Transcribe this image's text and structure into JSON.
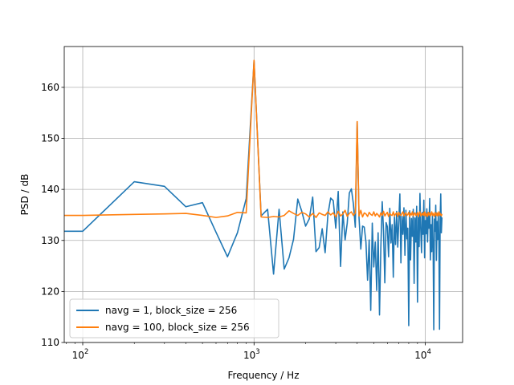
{
  "chart_data": {
    "type": "line",
    "title": "",
    "xlabel": "Frequency / Hz",
    "ylabel": "PSD / dB",
    "xscale": "log",
    "xlim": [
      78,
      16500
    ],
    "ylim": [
      110,
      168
    ],
    "grid": true,
    "legend_position": "lower-left",
    "x_ticks": [
      {
        "value": 100,
        "base": "10",
        "exp": "2"
      },
      {
        "value": 1000,
        "base": "10",
        "exp": "3"
      },
      {
        "value": 10000,
        "base": "10",
        "exp": "4"
      }
    ],
    "y_ticks": [
      110,
      120,
      130,
      140,
      150,
      160
    ],
    "series": [
      {
        "name": "navg = 1, block_size = 256",
        "color": "#1f77b4",
        "points": [
          [
            50,
            131.8
          ],
          [
            100,
            131.8
          ],
          [
            200,
            141.5
          ],
          [
            300,
            140.6
          ],
          [
            400,
            136.6
          ],
          [
            500,
            137.4
          ],
          [
            600,
            131.6
          ],
          [
            700,
            126.8
          ],
          [
            800,
            131.5
          ],
          [
            900,
            138.2
          ],
          [
            1000,
            165.2
          ],
          [
            1100,
            134.8
          ],
          [
            1200,
            136.1
          ],
          [
            1300,
            123.4
          ],
          [
            1400,
            136.1
          ],
          [
            1500,
            124.4
          ],
          [
            1600,
            126.6
          ],
          [
            1700,
            130.2
          ],
          [
            1800,
            138.1
          ],
          [
            1900,
            135.7
          ],
          [
            2000,
            132.8
          ],
          [
            2100,
            134.2
          ],
          [
            2200,
            138.5
          ],
          [
            2300,
            127.8
          ],
          [
            2400,
            128.6
          ],
          [
            2500,
            132.3
          ],
          [
            2600,
            127.6
          ],
          [
            2700,
            135.1
          ],
          [
            2800,
            138.3
          ],
          [
            2900,
            137.8
          ],
          [
            3000,
            132.4
          ],
          [
            3100,
            139.6
          ],
          [
            3200,
            124.9
          ],
          [
            3300,
            135.6
          ],
          [
            3400,
            130.1
          ],
          [
            3500,
            133.4
          ],
          [
            3600,
            139.3
          ],
          [
            3700,
            140.1
          ],
          [
            3800,
            137.2
          ],
          [
            3900,
            132.6
          ],
          [
            4000,
            153.2
          ],
          [
            4100,
            134.5
          ],
          [
            4200,
            128.3
          ],
          [
            4300,
            132.8
          ],
          [
            4400,
            132.6
          ],
          [
            4500,
            129.7
          ],
          [
            4600,
            122.2
          ],
          [
            4700,
            130.1
          ],
          [
            4800,
            116.3
          ],
          [
            4900,
            133.4
          ],
          [
            5000,
            124.8
          ],
          [
            5100,
            129.7
          ],
          [
            5200,
            120.2
          ],
          [
            5300,
            131.5
          ],
          [
            5400,
            115.4
          ],
          [
            5500,
            128.7
          ],
          [
            5600,
            137.6
          ],
          [
            5700,
            131.8
          ],
          [
            5800,
            121.7
          ],
          [
            5900,
            133.5
          ],
          [
            6000,
            132.7
          ],
          [
            6100,
            126.8
          ],
          [
            6200,
            136.3
          ],
          [
            6300,
            129.5
          ],
          [
            6400,
            133.1
          ],
          [
            6500,
            122.8
          ],
          [
            6600,
            134.6
          ],
          [
            6700,
            129.2
          ],
          [
            6800,
            135.7
          ],
          [
            6900,
            128.7
          ],
          [
            7000,
            133.9
          ],
          [
            7100,
            139.1
          ],
          [
            7200,
            125.6
          ],
          [
            7300,
            134.7
          ],
          [
            7400,
            131.2
          ],
          [
            7500,
            136.4
          ],
          [
            7600,
            127.1
          ],
          [
            7700,
            135.9
          ],
          [
            7800,
            130.3
          ],
          [
            7900,
            132.4
          ],
          [
            8000,
            113.3
          ],
          [
            8100,
            135.8
          ],
          [
            8200,
            126.2
          ],
          [
            8300,
            134.3
          ],
          [
            8400,
            130.8
          ],
          [
            8500,
            136.1
          ],
          [
            8600,
            121.6
          ],
          [
            8700,
            134.4
          ],
          [
            8800,
            129.7
          ],
          [
            8900,
            136.7
          ],
          [
            9000,
            117.9
          ],
          [
            9100,
            134.5
          ],
          [
            9200,
            128.8
          ],
          [
            9300,
            139.2
          ],
          [
            9400,
            132.1
          ],
          [
            9500,
            127.6
          ],
          [
            9600,
            135.5
          ],
          [
            9700,
            131.2
          ],
          [
            9800,
            137.9
          ],
          [
            9900,
            126.6
          ],
          [
            10000,
            133.9
          ],
          [
            10100,
            131.3
          ],
          [
            10200,
            136.2
          ],
          [
            10300,
            129.7
          ],
          [
            10400,
            135.2
          ],
          [
            10500,
            132.4
          ],
          [
            10600,
            138.2
          ],
          [
            10700,
            126.2
          ],
          [
            10800,
            133.1
          ],
          [
            10900,
            127.8
          ],
          [
            11000,
            134.9
          ],
          [
            11100,
            129.3
          ],
          [
            11200,
            112.5
          ],
          [
            11300,
            134.2
          ],
          [
            11400,
            131.8
          ],
          [
            11500,
            136.9
          ],
          [
            11600,
            126.1
          ],
          [
            11700,
            133.7
          ],
          [
            11800,
            130.2
          ],
          [
            11900,
            135.3
          ],
          [
            12000,
            129.8
          ],
          [
            12100,
            112.6
          ],
          [
            12200,
            134.1
          ],
          [
            12300,
            139.1
          ],
          [
            12400,
            131.5
          ],
          [
            12500,
            134.5
          ]
        ]
      },
      {
        "name": "navg = 100, block_size = 256",
        "color": "#ff7f0e",
        "points": [
          [
            50,
            134.9
          ],
          [
            100,
            134.9
          ],
          [
            200,
            135.1
          ],
          [
            300,
            135.2
          ],
          [
            400,
            135.3
          ],
          [
            500,
            134.9
          ],
          [
            600,
            134.5
          ],
          [
            700,
            134.8
          ],
          [
            800,
            135.5
          ],
          [
            900,
            135.4
          ],
          [
            1000,
            165.3
          ],
          [
            1100,
            134.6
          ],
          [
            1200,
            134.5
          ],
          [
            1300,
            134.7
          ],
          [
            1400,
            134.6
          ],
          [
            1500,
            134.9
          ],
          [
            1600,
            135.8
          ],
          [
            1700,
            135.3
          ],
          [
            1800,
            134.9
          ],
          [
            1900,
            135.5
          ],
          [
            2000,
            135.2
          ],
          [
            2100,
            134.6
          ],
          [
            2200,
            135.3
          ],
          [
            2300,
            134.5
          ],
          [
            2400,
            135.4
          ],
          [
            2500,
            135.1
          ],
          [
            2600,
            134.9
          ],
          [
            2700,
            135.6
          ],
          [
            2800,
            135.0
          ],
          [
            2900,
            135.4
          ],
          [
            3000,
            134.6
          ],
          [
            3100,
            135.7
          ],
          [
            3200,
            134.8
          ],
          [
            3300,
            135.2
          ],
          [
            3400,
            135.9
          ],
          [
            3500,
            134.7
          ],
          [
            3600,
            135.3
          ],
          [
            3700,
            135.6
          ],
          [
            3800,
            134.9
          ],
          [
            3900,
            135.4
          ],
          [
            4000,
            153.3
          ],
          [
            4100,
            134.8
          ],
          [
            4200,
            135.9
          ],
          [
            4300,
            134.6
          ],
          [
            4400,
            135.4
          ],
          [
            4500,
            135.2
          ],
          [
            4600,
            134.7
          ],
          [
            4700,
            135.5
          ],
          [
            4800,
            135.1
          ],
          [
            4900,
            134.9
          ],
          [
            5000,
            135.6
          ],
          [
            5100,
            134.8
          ],
          [
            5200,
            135.3
          ],
          [
            5300,
            135.0
          ],
          [
            5400,
            134.6
          ],
          [
            5500,
            135.4
          ],
          [
            5600,
            134.9
          ],
          [
            5700,
            135.7
          ],
          [
            5800,
            134.8
          ],
          [
            5900,
            135.2
          ],
          [
            6000,
            135.5
          ],
          [
            6100,
            134.7
          ],
          [
            6200,
            135.3
          ],
          [
            6300,
            135.0
          ],
          [
            6400,
            134.9
          ],
          [
            6500,
            135.6
          ],
          [
            6600,
            134.8
          ],
          [
            6700,
            135.2
          ],
          [
            6800,
            135.4
          ],
          [
            6900,
            134.7
          ],
          [
            7000,
            135.5
          ],
          [
            7100,
            135.0
          ],
          [
            7200,
            134.9
          ],
          [
            7300,
            135.3
          ],
          [
            7400,
            135.6
          ],
          [
            7500,
            134.8
          ],
          [
            7600,
            135.2
          ],
          [
            7700,
            135.4
          ],
          [
            7800,
            134.9
          ],
          [
            7900,
            135.1
          ],
          [
            8000,
            135.5
          ],
          [
            8100,
            134.7
          ],
          [
            8200,
            135.3
          ],
          [
            8300,
            135.0
          ],
          [
            8400,
            135.6
          ],
          [
            8500,
            134.8
          ],
          [
            8600,
            135.2
          ],
          [
            8700,
            135.4
          ],
          [
            8800,
            134.9
          ],
          [
            8900,
            135.1
          ],
          [
            9000,
            135.5
          ],
          [
            9100,
            134.7
          ],
          [
            9200,
            135.3
          ],
          [
            9300,
            135.6
          ],
          [
            9400,
            134.8
          ],
          [
            9500,
            135.2
          ],
          [
            9600,
            135.0
          ],
          [
            9700,
            135.4
          ],
          [
            9800,
            134.9
          ],
          [
            9900,
            135.6
          ],
          [
            10000,
            134.8
          ],
          [
            10100,
            135.3
          ],
          [
            10200,
            135.1
          ],
          [
            10300,
            134.7
          ],
          [
            10400,
            135.5
          ],
          [
            10500,
            135.0
          ],
          [
            10600,
            135.4
          ],
          [
            10700,
            134.8
          ],
          [
            10800,
            135.2
          ],
          [
            10900,
            135.6
          ],
          [
            11000,
            134.9
          ],
          [
            11100,
            135.3
          ],
          [
            11200,
            135.0
          ],
          [
            11300,
            134.7
          ],
          [
            11400,
            135.5
          ],
          [
            11500,
            135.1
          ],
          [
            11600,
            134.9
          ],
          [
            11700,
            135.4
          ],
          [
            11800,
            134.8
          ],
          [
            11900,
            135.2
          ],
          [
            12000,
            135.6
          ],
          [
            12100,
            134.9
          ],
          [
            12200,
            135.3
          ],
          [
            12300,
            135.0
          ],
          [
            12400,
            134.8
          ],
          [
            12500,
            135.2
          ]
        ]
      }
    ]
  }
}
